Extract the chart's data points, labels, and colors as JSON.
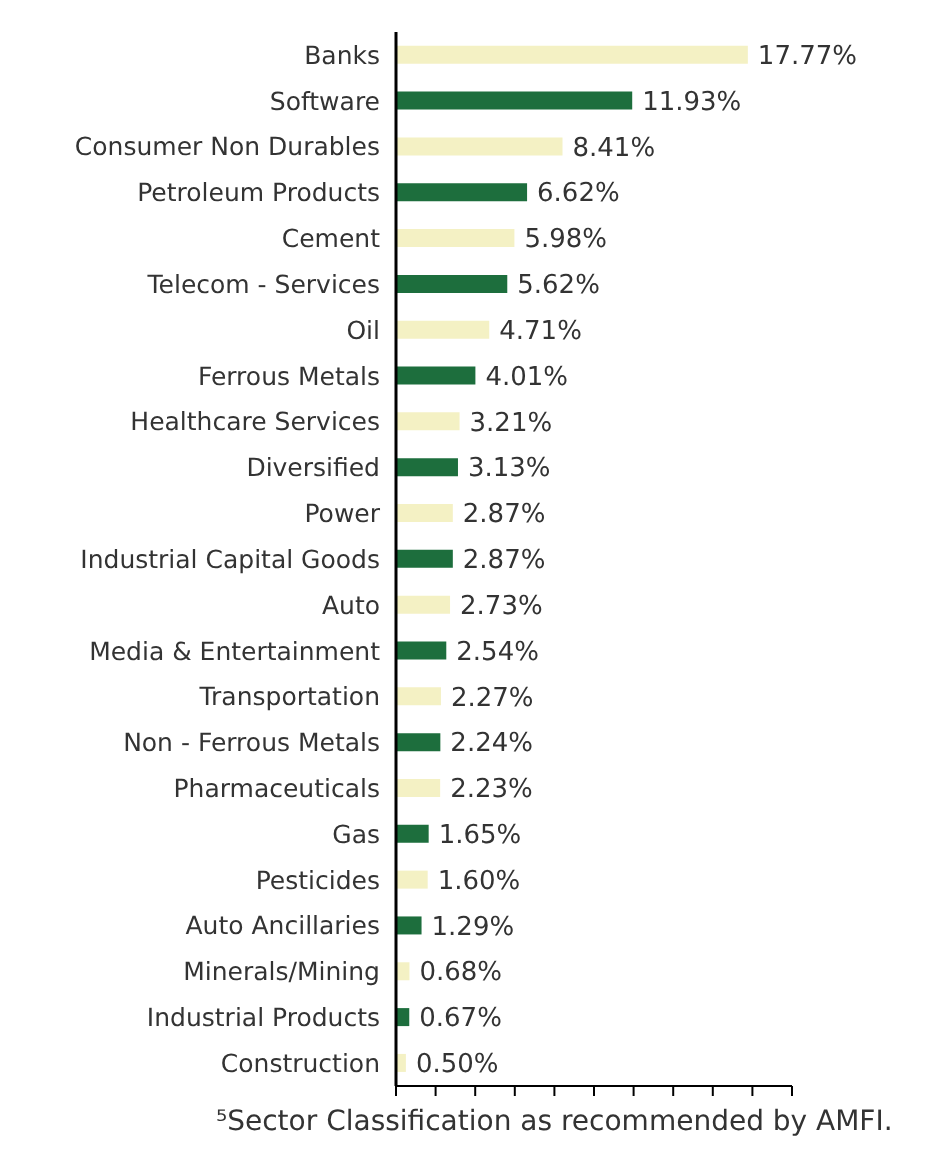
{
  "chart_data": {
    "type": "bar",
    "orientation": "horizontal",
    "categories": [
      "Banks",
      "Software",
      "Consumer Non Durables",
      "Petroleum Products",
      "Cement",
      "Telecom - Services",
      "Oil",
      "Ferrous Metals",
      "Healthcare Services",
      "Diversified",
      "Power",
      "Industrial Capital Goods",
      "Auto",
      "Media & Entertainment",
      "Transportation",
      "Non - Ferrous Metals",
      "Pharmaceuticals",
      "Gas",
      "Pesticides",
      "Auto Ancillaries",
      "Minerals/Mining",
      "Industrial Products",
      "Construction"
    ],
    "values": [
      17.77,
      11.93,
      8.41,
      6.62,
      5.98,
      5.62,
      4.71,
      4.01,
      3.21,
      3.13,
      2.87,
      2.87,
      2.73,
      2.54,
      2.27,
      2.24,
      2.23,
      1.65,
      1.6,
      1.29,
      0.68,
      0.67,
      0.5
    ],
    "value_labels": [
      "17.77%",
      "11.93%",
      "8.41%",
      "6.62%",
      "5.98%",
      "5.62%",
      "4.71%",
      "4.01%",
      "3.21%",
      "3.13%",
      "2.87%",
      "2.87%",
      "2.73%",
      "2.54%",
      "2.27%",
      "2.24%",
      "2.23%",
      "1.65%",
      "1.60%",
      "1.29%",
      "0.68%",
      "0.67%",
      "0.50%"
    ],
    "colors": [
      "#f4f1c4",
      "#1d6e3d",
      "#f4f1c4",
      "#1d6e3d",
      "#f4f1c4",
      "#1d6e3d",
      "#f4f1c4",
      "#1d6e3d",
      "#f4f1c4",
      "#1d6e3d",
      "#f4f1c4",
      "#1d6e3d",
      "#f4f1c4",
      "#1d6e3d",
      "#f4f1c4",
      "#1d6e3d",
      "#f4f1c4",
      "#1d6e3d",
      "#f4f1c4",
      "#1d6e3d",
      "#f4f1c4",
      "#1d6e3d",
      "#f4f1c4"
    ],
    "xlim": [
      0,
      20
    ],
    "xticks": [
      {
        "value": 0,
        "label": null
      },
      {
        "value": 2,
        "label": null
      },
      {
        "value": 4,
        "label": null
      },
      {
        "value": 6,
        "label": null
      },
      {
        "value": 8,
        "label": null
      },
      {
        "value": 10,
        "label": null
      },
      {
        "value": 12,
        "label": null
      },
      {
        "value": 14,
        "label": null
      },
      {
        "value": 16,
        "label": null
      },
      {
        "value": 18,
        "label": null
      },
      {
        "value": 20,
        "label": null
      }
    ],
    "tick_labels": "y",
    "grid": false,
    "annotations": [
      "⁵Sector Classification as recommended by AMFI."
    ]
  }
}
